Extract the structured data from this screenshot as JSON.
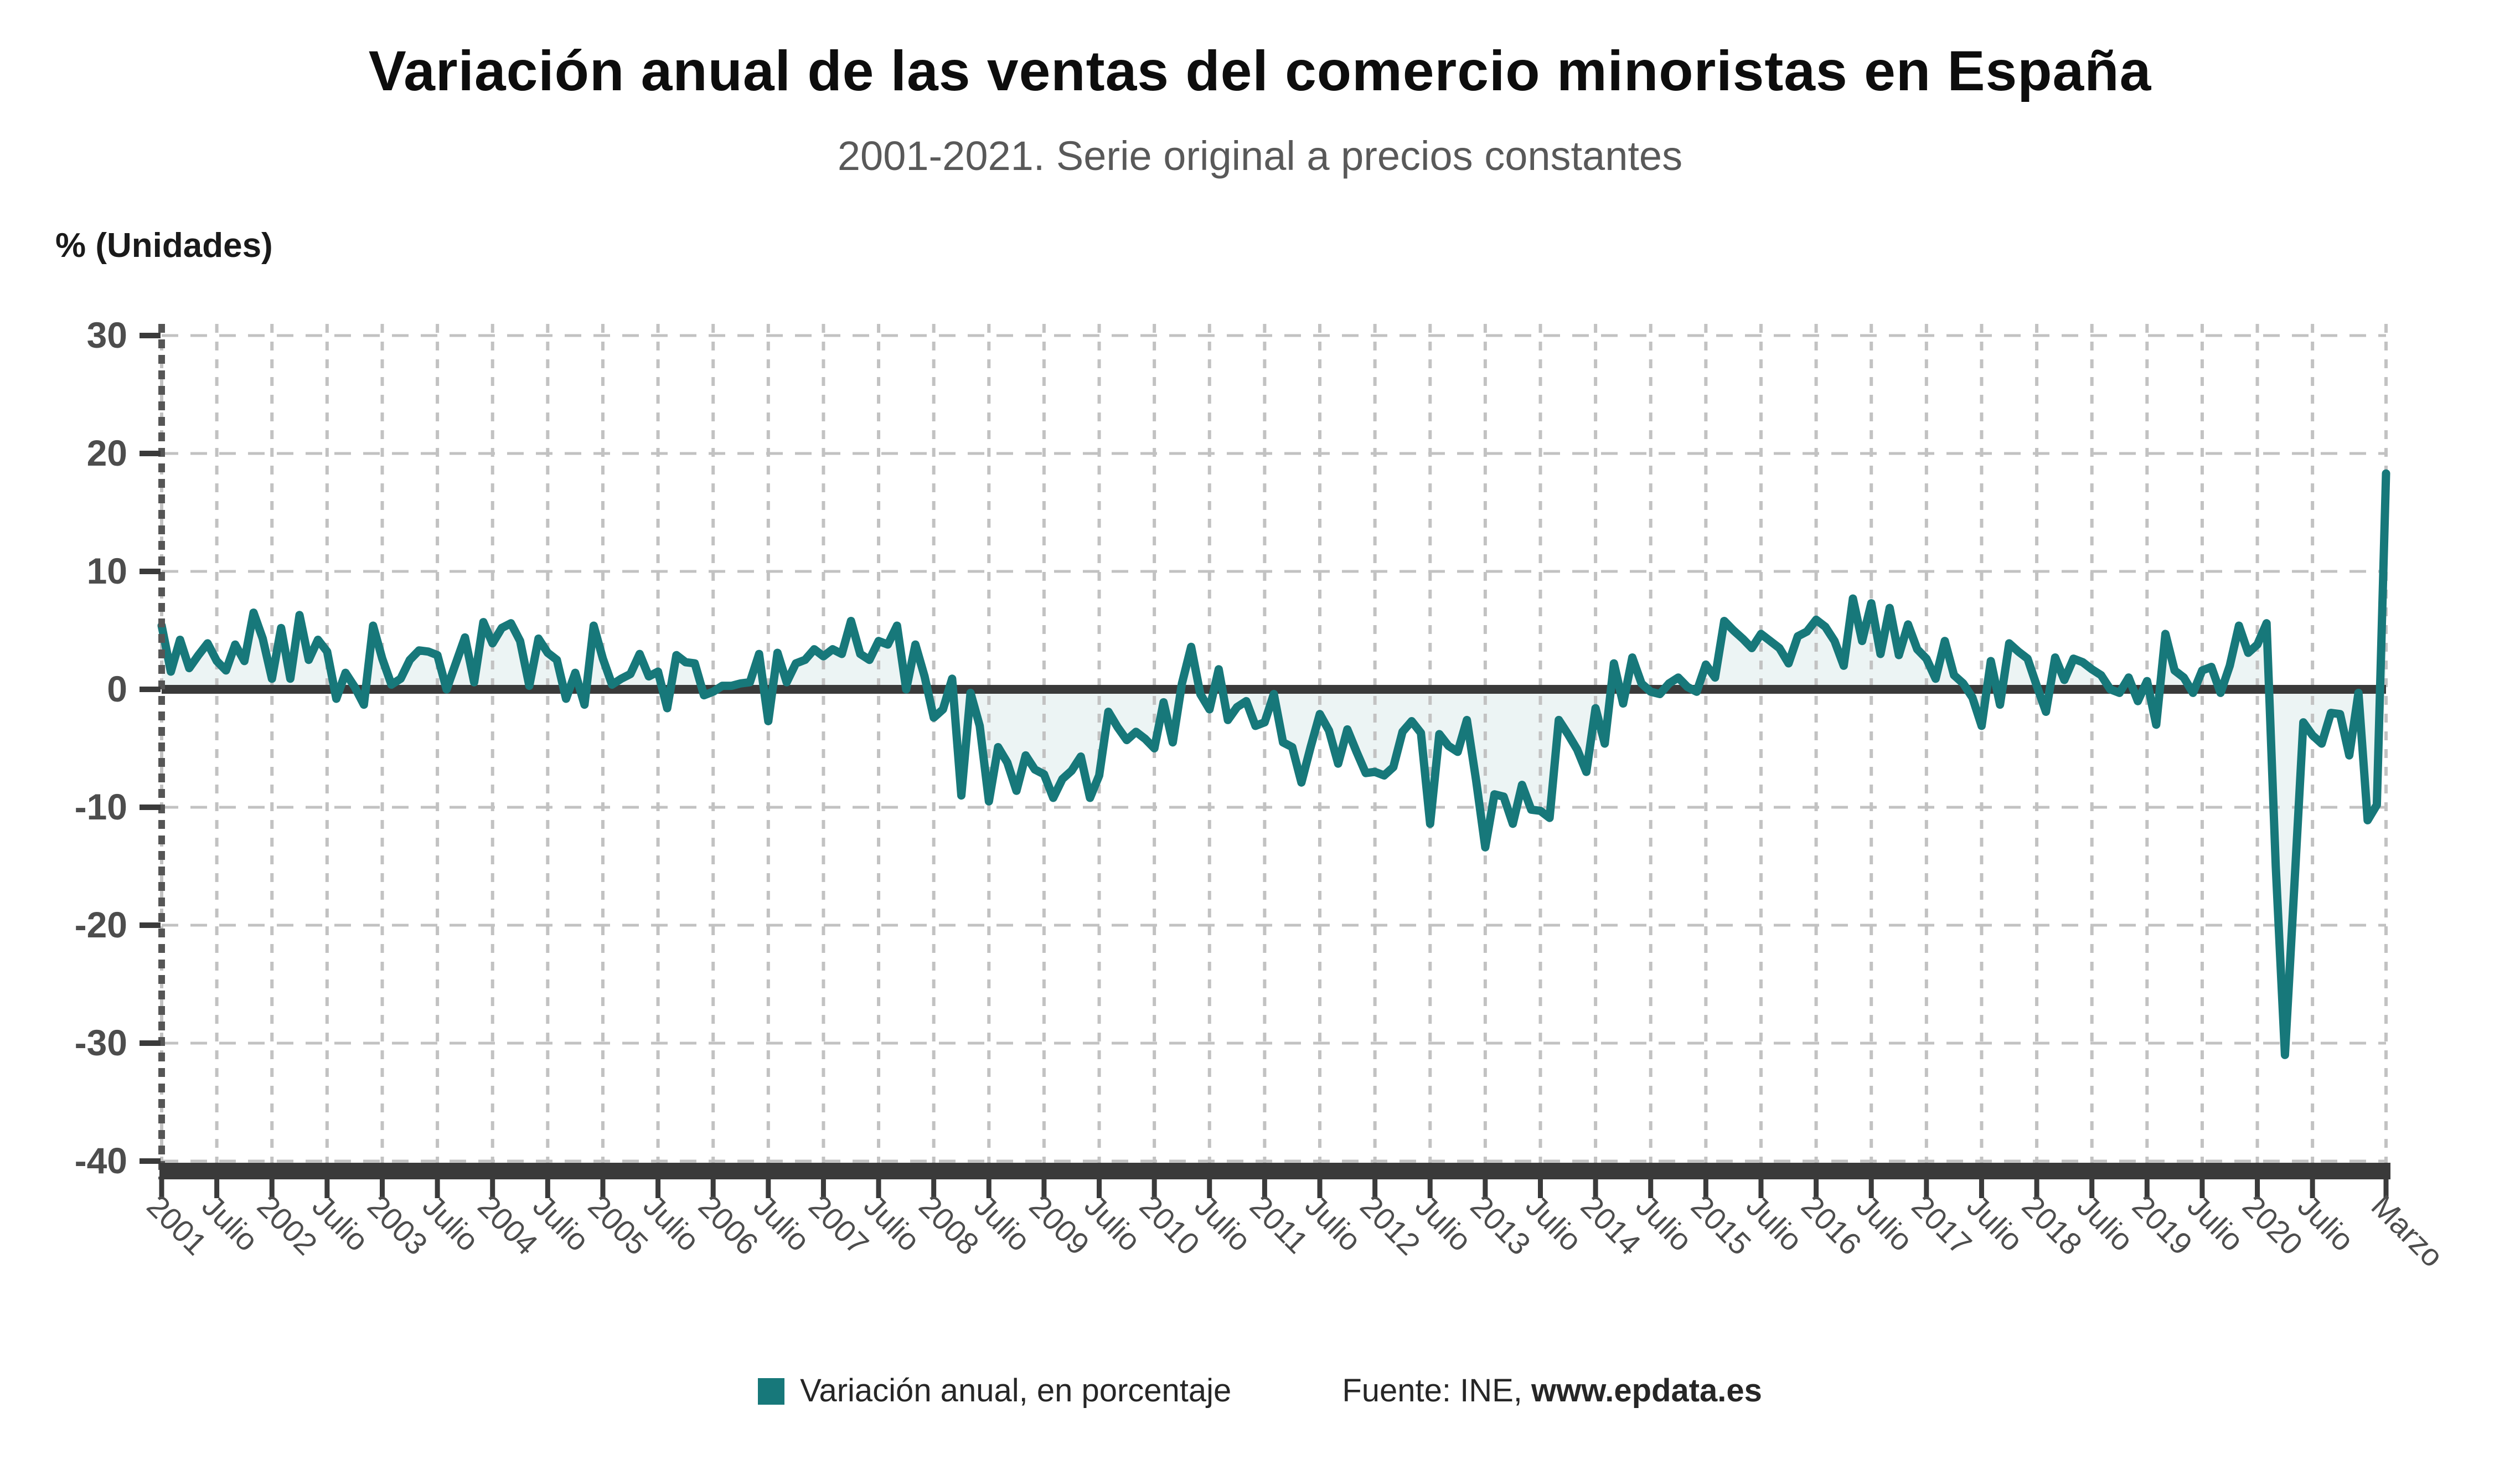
{
  "header": {
    "title": "Variación anual de las ventas del comercio minoristas en España",
    "subtitle": "2001-2021. Serie original a precios constantes"
  },
  "y_axis": {
    "unit_label": "% (Unidades)",
    "tick_values": [
      30,
      20,
      10,
      0,
      -10,
      -20,
      -30,
      -40
    ]
  },
  "x_axis": {
    "tick_labels": [
      "2001",
      "Julio",
      "2002",
      "Julio",
      "2003",
      "Julio",
      "2004",
      "Julio",
      "2005",
      "Julio",
      "2006",
      "Julio",
      "2007",
      "Julio",
      "2008",
      "Julio",
      "2009",
      "Julio",
      "2010",
      "Julio",
      "2011",
      "Julio",
      "2012",
      "Julio",
      "2013",
      "Julio",
      "2014",
      "Julio",
      "2015",
      "Julio",
      "2016",
      "Julio",
      "2017",
      "Julio",
      "2018",
      "Julio",
      "2019",
      "Julio",
      "2020",
      "Julio",
      "Marzo"
    ]
  },
  "legend": {
    "series_label": "Variación anual, en porcentaje",
    "source_prefix": "Fuente: INE, ",
    "source_link": "www.epdata.es"
  },
  "colors": {
    "line": "#17787a",
    "fill": "#ecf4f4",
    "zero_line": "#3a3a3a",
    "axis_bar": "#3a3a3a",
    "grid": "#c2c2c2",
    "axis_dash": "#555555",
    "tick_text": "#4d4d4d",
    "legend_swatch": "#17787a"
  },
  "chart_data": {
    "type": "line",
    "title": "Variación anual de las ventas del comercio minoristas en España",
    "subtitle": "2001-2021. Serie original a precios constantes",
    "ylabel": "% (Unidades)",
    "ylim": [
      -40,
      30
    ],
    "yticks": [
      30,
      20,
      10,
      0,
      -10,
      -20,
      -30,
      -40
    ],
    "grid": true,
    "legend_position": "bottom",
    "x_start": "2001-01",
    "x_end": "2021-03",
    "frequency": "monthly",
    "x_tick_labels": [
      "2001",
      "Julio",
      "2002",
      "Julio",
      "2003",
      "Julio",
      "2004",
      "Julio",
      "2005",
      "Julio",
      "2006",
      "Julio",
      "2007",
      "Julio",
      "2008",
      "Julio",
      "2009",
      "Julio",
      "2010",
      "Julio",
      "2011",
      "Julio",
      "2012",
      "Julio",
      "2013",
      "Julio",
      "2014",
      "Julio",
      "2015",
      "Julio",
      "2016",
      "Julio",
      "2017",
      "Julio",
      "2018",
      "Julio",
      "2019",
      "Julio",
      "2020",
      "Julio",
      "Marzo"
    ],
    "series": [
      {
        "name": "Variación anual, en porcentaje",
        "values": [
          5.4,
          1.5,
          4.2,
          1.8,
          2.9,
          3.9,
          2.4,
          1.6,
          3.8,
          2.4,
          6.5,
          4.3,
          0.9,
          5.2,
          0.9,
          6.3,
          2.5,
          4.2,
          3.2,
          -0.8,
          1.4,
          0.2,
          -1.3,
          5.4,
          2.6,
          0.4,
          0.9,
          2.5,
          3.3,
          3.2,
          2.9,
          0.0,
          2.2,
          4.4,
          0.6,
          5.7,
          3.9,
          5.2,
          5.6,
          4.1,
          0.3,
          4.3,
          3.1,
          2.5,
          -0.8,
          1.4,
          -1.3,
          5.4,
          2.6,
          0.4,
          0.9,
          1.3,
          3.0,
          1.1,
          1.5,
          -1.6,
          2.9,
          2.3,
          2.2,
          -0.5,
          -0.2,
          0.3,
          0.3,
          0.5,
          0.6,
          3.0,
          -2.7,
          3.1,
          0.6,
          2.2,
          2.5,
          3.4,
          2.8,
          3.4,
          3.0,
          5.8,
          3.0,
          2.5,
          4.1,
          3.8,
          5.4,
          0.0,
          3.8,
          1.1,
          -2.4,
          -1.7,
          0.9,
          -9.0,
          -0.3,
          -3.1,
          -9.5,
          -4.9,
          -6.2,
          -8.6,
          -5.6,
          -6.8,
          -7.2,
          -9.2,
          -7.6,
          -6.9,
          -5.7,
          -9.2,
          -7.3,
          -1.9,
          -3.2,
          -4.3,
          -3.6,
          -4.2,
          -5.0,
          -1.1,
          -4.5,
          0.5,
          3.6,
          -0.4,
          -1.7,
          1.7,
          -2.6,
          -1.5,
          -1.0,
          -3.1,
          -2.8,
          -0.4,
          -4.5,
          -4.9,
          -7.9,
          -4.9,
          -2.1,
          -3.5,
          -6.3,
          -3.4,
          -5.3,
          -7.1,
          -7.0,
          -7.3,
          -6.6,
          -3.6,
          -2.7,
          -3.7,
          -11.4,
          -3.8,
          -4.8,
          -5.3,
          -2.6,
          -7.7,
          -13.4,
          -8.9,
          -9.1,
          -11.4,
          -8.1,
          -10.2,
          -10.3,
          -10.9,
          -2.6,
          -3.8,
          -5.1,
          -7.0,
          -1.6,
          -4.6,
          2.2,
          -1.2,
          2.7,
          0.5,
          -0.2,
          -0.4,
          0.5,
          1.0,
          0.2,
          -0.2,
          2.1,
          1.0,
          5.8,
          5.0,
          4.3,
          3.5,
          4.7,
          4.1,
          3.5,
          2.2,
          4.5,
          4.9,
          5.9,
          5.3,
          4.1,
          2.0,
          7.7,
          4.1,
          7.3,
          3.0,
          6.9,
          2.9,
          5.5,
          3.4,
          2.6,
          0.9,
          4.1,
          1.2,
          0.5,
          -0.7,
          -3.1,
          2.4,
          -1.3,
          3.9,
          3.2,
          2.6,
          0.3,
          -1.9,
          2.7,
          0.8,
          2.6,
          2.3,
          1.7,
          1.2,
          0.0,
          -0.3,
          1.0,
          -1.0,
          0.7,
          -3.0,
          4.7,
          1.6,
          1.0,
          -0.3,
          1.6,
          1.9,
          -0.3,
          2.0,
          5.4,
          3.1,
          3.8,
          5.6,
          -15.0,
          -31.0,
          -17.0,
          -2.8,
          -3.9,
          -4.6,
          -2.0,
          -2.1,
          -5.6,
          -0.3,
          -11.1,
          -9.8,
          18.3
        ]
      }
    ]
  }
}
